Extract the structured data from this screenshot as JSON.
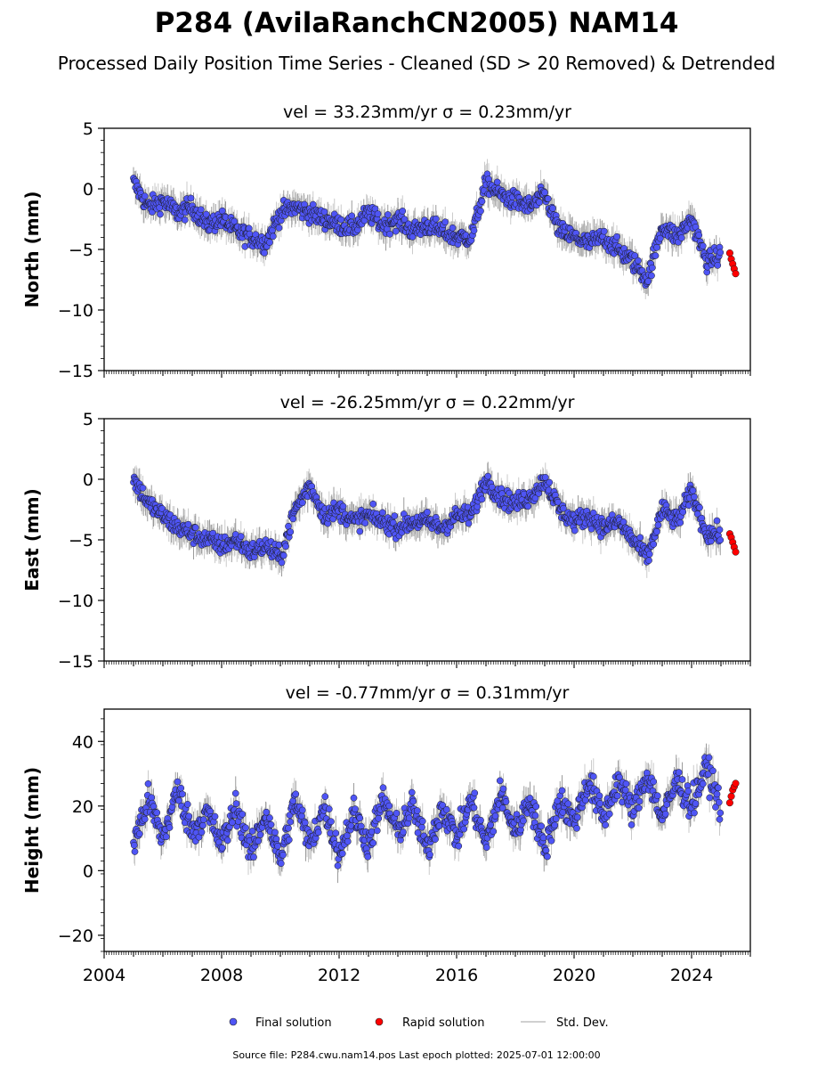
{
  "title": "P284 (AvilaRanchCN2005) NAM14",
  "subtitle": "Processed Daily Position Time Series - Cleaned (SD > 20 Removed) & Detrended",
  "footer": "Source file: P284.cwu.nam14.pos  Last epoch plotted: 2025-07-01 12:00:00",
  "legend": {
    "final": "Final solution",
    "rapid": "Rapid solution",
    "std": "Std. Dev."
  },
  "colors": {
    "final": "#4f55f5",
    "rapid": "#ff0000",
    "std": "#9a9a9a"
  },
  "chart_data": [
    {
      "type": "scatter",
      "component": "north",
      "title": "vel = 33.23mm/yr   σ = 0.23mm/yr",
      "ylabel": "North (mm)",
      "xlim": [
        2004,
        2026
      ],
      "ylim": [
        -15,
        5
      ],
      "yticks": [
        -15,
        -10,
        -5,
        0,
        5
      ],
      "ytick_labels": [
        "−15",
        "−10",
        "−5",
        "0",
        "5"
      ],
      "series": [
        {
          "name": "Final solution",
          "x": [
            2005.0,
            2005.5,
            2006.0,
            2006.5,
            2007.0,
            2007.5,
            2008.0,
            2008.5,
            2009.0,
            2009.5,
            2010.0,
            2010.5,
            2011.0,
            2011.5,
            2012.0,
            2012.5,
            2013.0,
            2013.5,
            2014.0,
            2014.5,
            2015.0,
            2015.5,
            2016.0,
            2016.5,
            2017.0,
            2017.5,
            2018.0,
            2018.5,
            2019.0,
            2019.5,
            2020.0,
            2020.5,
            2021.0,
            2021.5,
            2022.0,
            2022.5,
            2023.0,
            2023.5,
            2024.0,
            2024.5,
            2025.0
          ],
          "y": [
            0.5,
            -1.5,
            -1.0,
            -2.0,
            -1.5,
            -3.0,
            -2.5,
            -3.5,
            -4.0,
            -4.5,
            -2.0,
            -1.5,
            -2.0,
            -2.5,
            -3.0,
            -3.2,
            -2.0,
            -3.0,
            -2.5,
            -3.5,
            -3.0,
            -3.5,
            -4.0,
            -4.0,
            0.5,
            -0.5,
            -1.0,
            -1.5,
            -0.5,
            -3.5,
            -4.0,
            -4.5,
            -4.0,
            -5.0,
            -6.0,
            -7.5,
            -3.0,
            -4.0,
            -2.5,
            -6.0,
            -5.5
          ]
        },
        {
          "name": "Rapid solution",
          "x": [
            2025.3,
            2025.35,
            2025.4,
            2025.45,
            2025.5
          ],
          "y": [
            -5.3,
            -5.8,
            -6.2,
            -6.6,
            -7.0
          ]
        }
      ]
    },
    {
      "type": "scatter",
      "component": "east",
      "title": "vel = -26.25mm/yr   σ = 0.22mm/yr",
      "ylabel": "East (mm)",
      "xlim": [
        2004,
        2026
      ],
      "ylim": [
        -15,
        5
      ],
      "yticks": [
        -15,
        -10,
        -5,
        0,
        5
      ],
      "ytick_labels": [
        "−15",
        "−10",
        "−5",
        "0",
        "5"
      ],
      "series": [
        {
          "name": "Final solution",
          "x": [
            2005.0,
            2005.5,
            2006.0,
            2006.5,
            2007.0,
            2007.5,
            2008.0,
            2008.5,
            2009.0,
            2009.5,
            2010.0,
            2010.5,
            2011.0,
            2011.5,
            2012.0,
            2012.5,
            2013.0,
            2013.5,
            2014.0,
            2014.5,
            2015.0,
            2015.5,
            2016.0,
            2016.5,
            2017.0,
            2017.5,
            2018.0,
            2018.5,
            2019.0,
            2019.5,
            2020.0,
            2020.5,
            2021.0,
            2021.5,
            2022.0,
            2022.5,
            2023.0,
            2023.5,
            2024.0,
            2024.5,
            2025.0
          ],
          "y": [
            0.0,
            -2.0,
            -3.0,
            -4.0,
            -4.5,
            -5.0,
            -5.5,
            -5.0,
            -6.0,
            -5.5,
            -6.5,
            -2.5,
            -0.5,
            -3.0,
            -2.5,
            -3.5,
            -3.0,
            -3.5,
            -4.0,
            -3.5,
            -3.5,
            -4.0,
            -3.0,
            -3.0,
            0.0,
            -1.5,
            -2.0,
            -1.5,
            0.0,
            -2.5,
            -3.5,
            -3.0,
            -4.0,
            -3.5,
            -5.0,
            -6.5,
            -2.5,
            -3.5,
            -1.0,
            -4.5,
            -4.5
          ]
        },
        {
          "name": "Rapid solution",
          "x": [
            2025.3,
            2025.35,
            2025.4,
            2025.45,
            2025.5
          ],
          "y": [
            -4.5,
            -4.8,
            -5.2,
            -5.6,
            -6.0
          ]
        }
      ]
    },
    {
      "type": "scatter",
      "component": "height",
      "title": "vel = -0.77mm/yr   σ = 0.31mm/yr",
      "ylabel": "Height (mm)",
      "xlim": [
        2004,
        2026
      ],
      "ylim": [
        -25,
        50
      ],
      "yticks": [
        -20,
        0,
        20,
        40
      ],
      "ytick_labels": [
        "−20",
        "0",
        "20",
        "40"
      ],
      "xticks": [
        2004,
        2008,
        2012,
        2016,
        2020,
        2024
      ],
      "xtick_labels": [
        "2004",
        "2008",
        "2012",
        "2016",
        "2020",
        "2024"
      ],
      "series": [
        {
          "name": "Final solution",
          "x": [
            2005.0,
            2005.5,
            2006.0,
            2006.5,
            2007.0,
            2007.5,
            2008.0,
            2008.5,
            2009.0,
            2009.5,
            2010.0,
            2010.5,
            2011.0,
            2011.5,
            2012.0,
            2012.5,
            2013.0,
            2013.5,
            2014.0,
            2014.5,
            2015.0,
            2015.5,
            2016.0,
            2016.5,
            2017.0,
            2017.5,
            2018.0,
            2018.5,
            2019.0,
            2019.5,
            2020.0,
            2020.5,
            2021.0,
            2021.5,
            2022.0,
            2022.5,
            2023.0,
            2023.5,
            2024.0,
            2024.5,
            2025.0
          ],
          "y": [
            8,
            22,
            10,
            25,
            12,
            18,
            8,
            20,
            5,
            18,
            3,
            22,
            8,
            20,
            5,
            18,
            8,
            22,
            12,
            20,
            6,
            20,
            10,
            22,
            8,
            24,
            12,
            22,
            6,
            22,
            15,
            28,
            16,
            28,
            18,
            30,
            16,
            28,
            20,
            32,
            20
          ]
        },
        {
          "name": "Rapid solution",
          "x": [
            2025.3,
            2025.35,
            2025.4,
            2025.45,
            2025.5
          ],
          "y": [
            21,
            23,
            25,
            26,
            27
          ]
        }
      ]
    }
  ]
}
